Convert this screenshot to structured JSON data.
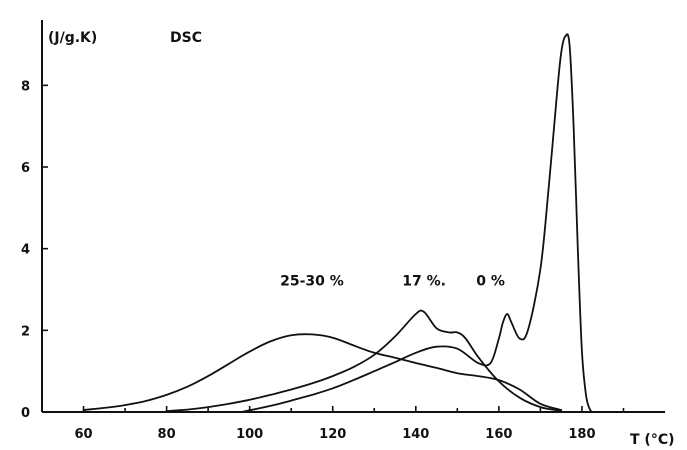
{
  "chart_data": {
    "type": "line",
    "title": "DSC",
    "ylabel": "(J/g.K)",
    "xlabel": "T (°C)",
    "xlim": [
      50,
      200
    ],
    "ylim": [
      0,
      9.6
    ],
    "xticks": [
      60,
      80,
      100,
      120,
      140,
      160,
      180
    ],
    "yticks": [
      0,
      2,
      4,
      6,
      8
    ],
    "grid": false,
    "series": [
      {
        "name": "25-30 %",
        "x": [
          60,
          65,
          70,
          75,
          80,
          85,
          90,
          95,
          100,
          105,
          110,
          115,
          120,
          125,
          130,
          135,
          140,
          145,
          150,
          155,
          160,
          165,
          170,
          175
        ],
        "y": [
          0.05,
          0.1,
          0.17,
          0.27,
          0.42,
          0.62,
          0.88,
          1.18,
          1.48,
          1.73,
          1.88,
          1.9,
          1.82,
          1.63,
          1.45,
          1.33,
          1.2,
          1.08,
          0.95,
          0.88,
          0.78,
          0.55,
          0.2,
          0.05
        ]
      },
      {
        "name": "17 %",
        "x": [
          80,
          85,
          90,
          95,
          100,
          105,
          110,
          115,
          120,
          125,
          130,
          135,
          140,
          142,
          145,
          148,
          150,
          152,
          155,
          160,
          165,
          170,
          175
        ],
        "y": [
          0.02,
          0.06,
          0.12,
          0.2,
          0.3,
          0.42,
          0.55,
          0.7,
          0.88,
          1.1,
          1.4,
          1.85,
          2.4,
          2.45,
          2.05,
          1.95,
          1.95,
          1.8,
          1.35,
          0.75,
          0.35,
          0.12,
          0.03
        ]
      },
      {
        "name": "0 %",
        "x": [
          98,
          105,
          110,
          115,
          120,
          125,
          130,
          135,
          140,
          145,
          150,
          155,
          158,
          160,
          161,
          162,
          163,
          165,
          167,
          170,
          172,
          174,
          175,
          176,
          177,
          178,
          179,
          180,
          181,
          182,
          183
        ],
        "y": [
          0.0,
          0.15,
          0.28,
          0.42,
          0.58,
          0.78,
          1.0,
          1.22,
          1.45,
          1.6,
          1.55,
          1.2,
          1.2,
          1.8,
          2.2,
          2.4,
          2.2,
          1.8,
          2.0,
          3.5,
          5.5,
          7.8,
          8.8,
          9.2,
          9.0,
          7.0,
          4.0,
          1.5,
          0.4,
          0.05,
          0.0
        ]
      }
    ],
    "annotations": [
      {
        "text": "25-30 %",
        "x": 115,
        "y": 3.1
      },
      {
        "text": "17 %.",
        "x": 142,
        "y": 3.1
      },
      {
        "text": "0 %",
        "x": 158,
        "y": 3.1
      }
    ]
  }
}
